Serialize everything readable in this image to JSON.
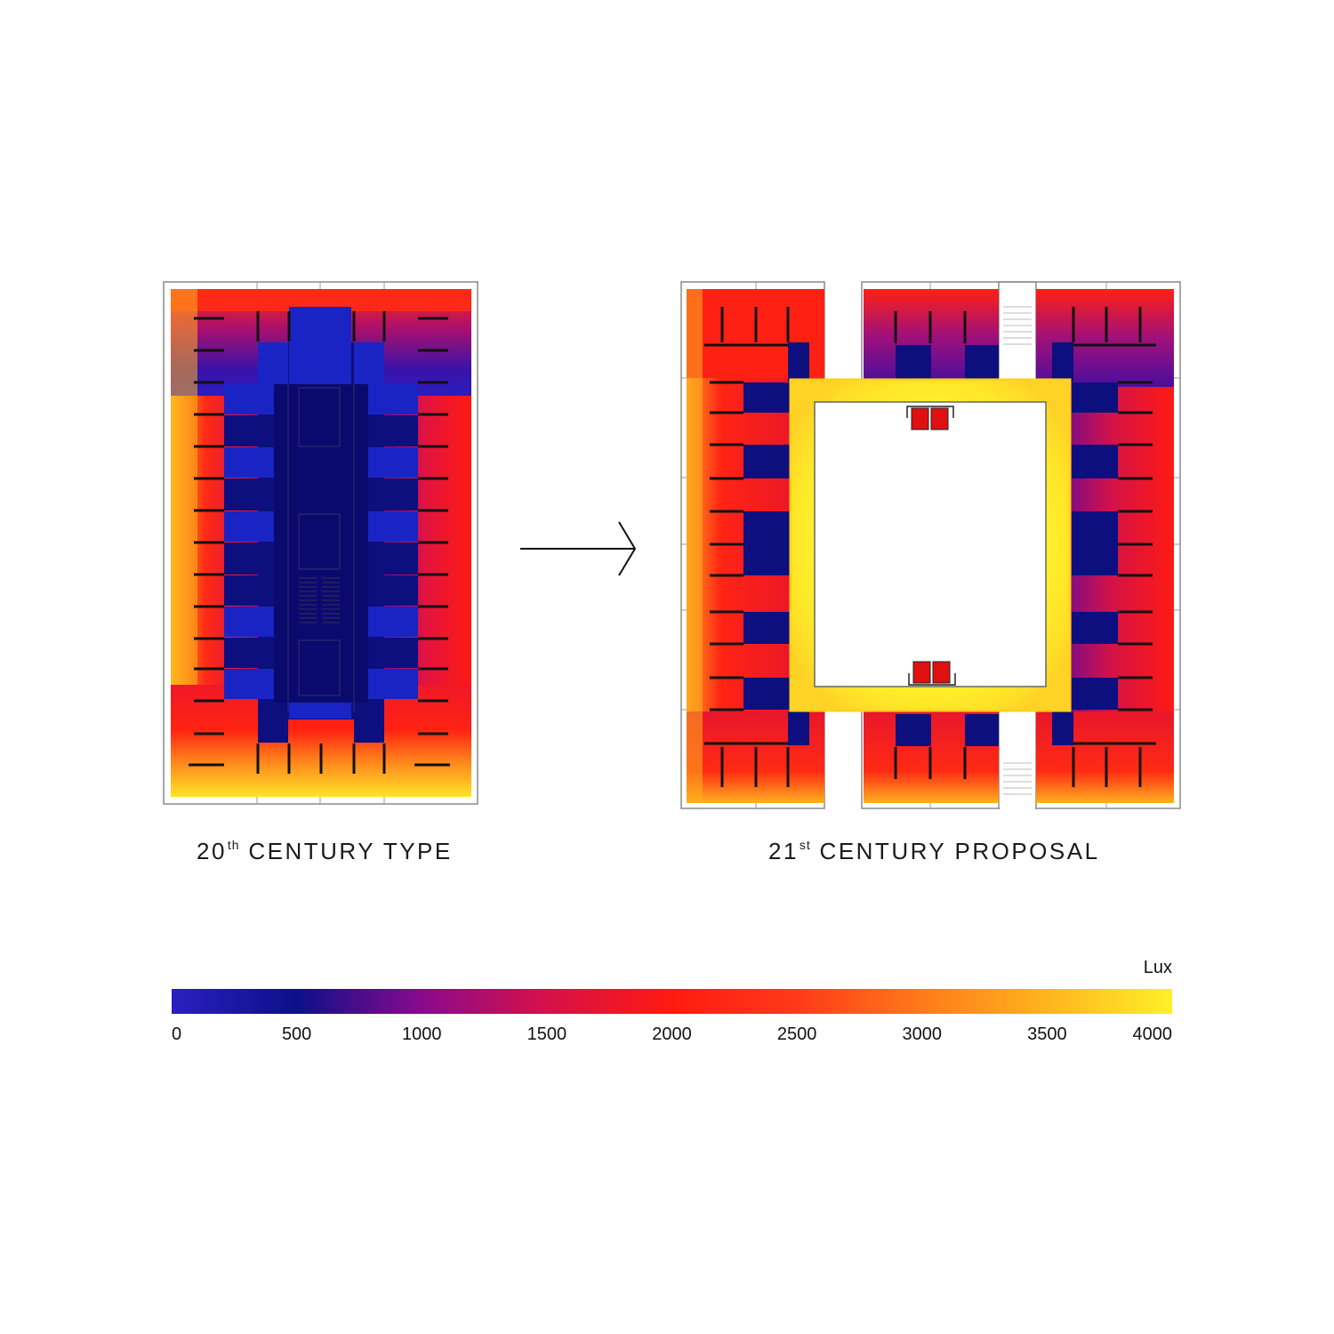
{
  "captions": {
    "left": {
      "main": "20",
      "sup": "th",
      "rest": " CENTURY TYPE"
    },
    "right": {
      "main": "21",
      "sup": "st",
      "rest": " CENTURY PROPOSAL"
    }
  },
  "legend": {
    "unit": "Lux",
    "ticks": [
      "0",
      "500",
      "1000",
      "1500",
      "2000",
      "2500",
      "3000",
      "3500",
      "4000"
    ],
    "range": [
      0,
      4000
    ],
    "colors": {
      "0": "#2a1fc0",
      "500": "#0d0f8a",
      "1000": "#8a0a8c",
      "1500": "#d6104a",
      "2000": "#ff1a10",
      "2500": "#ff3a1a",
      "3000": "#ff7a1a",
      "3500": "#ffb41e",
      "4000": "#fff02a"
    }
  }
}
